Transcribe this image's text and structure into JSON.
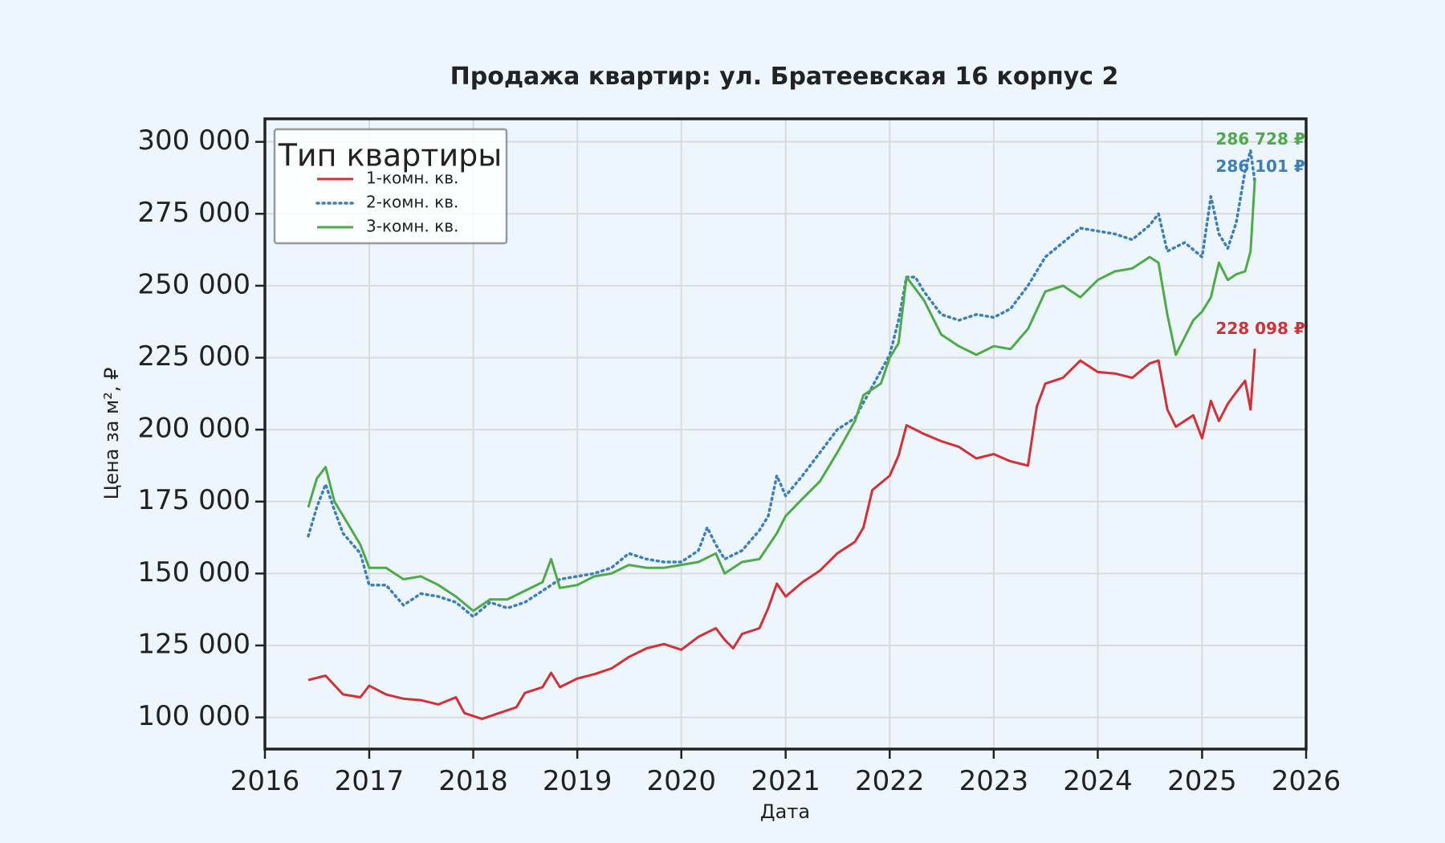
{
  "chart_data": {
    "type": "line",
    "title": "Продажа квартир: ул. Братеевская 16 корпус 2",
    "xlabel": "Дата",
    "ylabel": "Цена за м², ₽",
    "xlim": [
      "2016-01-01",
      "2026-01-01"
    ],
    "ylim": [
      89000,
      308000
    ],
    "x_ticks": [
      "2016",
      "2017",
      "2018",
      "2019",
      "2020",
      "2021",
      "2022",
      "2023",
      "2024",
      "2025",
      "2026"
    ],
    "y_ticks": [
      {
        "value": 100000,
        "label": "100 000"
      },
      {
        "value": 125000,
        "label": "125 000"
      },
      {
        "value": 150000,
        "label": "150 000"
      },
      {
        "value": 175000,
        "label": "175 000"
      },
      {
        "value": 200000,
        "label": "200 000"
      },
      {
        "value": 225000,
        "label": "225 000"
      },
      {
        "value": 250000,
        "label": "250 000"
      },
      {
        "value": 275000,
        "label": "275 000"
      },
      {
        "value": 300000,
        "label": "300 000"
      }
    ],
    "grid": true,
    "legend": {
      "title": "Тип квартиры",
      "placement": "top-left"
    },
    "series": [
      {
        "name": "1-комн. кв.",
        "color": "#d62f36",
        "style": "solid",
        "end_label": "228 098 ₽",
        "points": [
          [
            "2016-06-01",
            113000
          ],
          [
            "2016-08-01",
            114500
          ],
          [
            "2016-10-01",
            108000
          ],
          [
            "2016-12-01",
            107000
          ],
          [
            "2017-01-01",
            111000
          ],
          [
            "2017-03-01",
            108000
          ],
          [
            "2017-05-01",
            106500
          ],
          [
            "2017-07-01",
            106000
          ],
          [
            "2017-09-01",
            104500
          ],
          [
            "2017-11-01",
            107000
          ],
          [
            "2017-12-01",
            101500
          ],
          [
            "2018-02-01",
            99500
          ],
          [
            "2018-04-01",
            101500
          ],
          [
            "2018-06-01",
            103500
          ],
          [
            "2018-07-01",
            108500
          ],
          [
            "2018-09-01",
            110500
          ],
          [
            "2018-10-01",
            115500
          ],
          [
            "2018-11-01",
            110500
          ],
          [
            "2019-01-01",
            113500
          ],
          [
            "2019-03-01",
            115000
          ],
          [
            "2019-05-01",
            117000
          ],
          [
            "2019-07-01",
            121000
          ],
          [
            "2019-09-01",
            124000
          ],
          [
            "2019-11-01",
            125500
          ],
          [
            "2020-01-01",
            123500
          ],
          [
            "2020-03-01",
            128000
          ],
          [
            "2020-05-01",
            131000
          ],
          [
            "2020-06-01",
            127000
          ],
          [
            "2020-07-01",
            124000
          ],
          [
            "2020-08-01",
            129000
          ],
          [
            "2020-10-01",
            131000
          ],
          [
            "2020-11-01",
            138000
          ],
          [
            "2020-12-01",
            146500
          ],
          [
            "2021-01-01",
            142000
          ],
          [
            "2021-03-01",
            147000
          ],
          [
            "2021-05-01",
            151000
          ],
          [
            "2021-07-01",
            157000
          ],
          [
            "2021-09-01",
            161000
          ],
          [
            "2021-10-01",
            166000
          ],
          [
            "2021-11-01",
            179000
          ],
          [
            "2022-01-01",
            184000
          ],
          [
            "2022-02-01",
            191000
          ],
          [
            "2022-03-01",
            201500
          ],
          [
            "2022-05-01",
            198500
          ],
          [
            "2022-07-01",
            196000
          ],
          [
            "2022-09-01",
            194000
          ],
          [
            "2022-11-01",
            190000
          ],
          [
            "2023-01-01",
            191500
          ],
          [
            "2023-03-01",
            189000
          ],
          [
            "2023-05-01",
            187500
          ],
          [
            "2023-06-01",
            208000
          ],
          [
            "2023-07-01",
            216000
          ],
          [
            "2023-09-01",
            218000
          ],
          [
            "2023-11-01",
            224000
          ],
          [
            "2024-01-01",
            220000
          ],
          [
            "2024-03-01",
            219500
          ],
          [
            "2024-05-01",
            218000
          ],
          [
            "2024-07-01",
            223000
          ],
          [
            "2024-08-01",
            224000
          ],
          [
            "2024-09-01",
            207000
          ],
          [
            "2024-10-01",
            201000
          ],
          [
            "2024-12-01",
            205000
          ],
          [
            "2025-01-01",
            197000
          ],
          [
            "2025-02-01",
            210000
          ],
          [
            "2025-03-01",
            203000
          ],
          [
            "2025-04-01",
            209000
          ],
          [
            "2025-05-01",
            213000
          ],
          [
            "2025-06-01",
            217000
          ],
          [
            "2025-06-20",
            207000
          ],
          [
            "2025-07-05",
            228098
          ]
        ]
      },
      {
        "name": "2-комн. кв.",
        "color": "#3b7fbb",
        "style": "dotted",
        "end_label": "286 101 ₽",
        "points": [
          [
            "2016-06-01",
            163000
          ],
          [
            "2016-07-01",
            173000
          ],
          [
            "2016-08-01",
            181000
          ],
          [
            "2016-09-01",
            172000
          ],
          [
            "2016-10-01",
            164000
          ],
          [
            "2016-12-01",
            157000
          ],
          [
            "2017-01-01",
            146000
          ],
          [
            "2017-03-01",
            146000
          ],
          [
            "2017-05-01",
            139000
          ],
          [
            "2017-07-01",
            143000
          ],
          [
            "2017-09-01",
            142000
          ],
          [
            "2017-11-01",
            140000
          ],
          [
            "2018-01-01",
            135000
          ],
          [
            "2018-03-01",
            140000
          ],
          [
            "2018-05-01",
            138000
          ],
          [
            "2018-07-01",
            140000
          ],
          [
            "2018-09-01",
            144000
          ],
          [
            "2018-11-01",
            148000
          ],
          [
            "2019-01-01",
            149000
          ],
          [
            "2019-03-01",
            150000
          ],
          [
            "2019-05-01",
            152000
          ],
          [
            "2019-07-01",
            157000
          ],
          [
            "2019-09-01",
            155000
          ],
          [
            "2019-11-01",
            154000
          ],
          [
            "2020-01-01",
            154000
          ],
          [
            "2020-03-01",
            158000
          ],
          [
            "2020-04-01",
            166000
          ],
          [
            "2020-05-01",
            160000
          ],
          [
            "2020-06-01",
            155000
          ],
          [
            "2020-08-01",
            158000
          ],
          [
            "2020-10-01",
            165000
          ],
          [
            "2020-11-01",
            170000
          ],
          [
            "2020-12-01",
            184000
          ],
          [
            "2021-01-01",
            177000
          ],
          [
            "2021-03-01",
            184000
          ],
          [
            "2021-05-01",
            192000
          ],
          [
            "2021-07-01",
            200000
          ],
          [
            "2021-09-01",
            204000
          ],
          [
            "2021-11-01",
            215000
          ],
          [
            "2022-01-01",
            226000
          ],
          [
            "2022-02-01",
            238000
          ],
          [
            "2022-03-01",
            253000
          ],
          [
            "2022-04-01",
            253000
          ],
          [
            "2022-05-01",
            248000
          ],
          [
            "2022-07-01",
            240000
          ],
          [
            "2022-09-01",
            238000
          ],
          [
            "2022-11-01",
            240000
          ],
          [
            "2023-01-01",
            239000
          ],
          [
            "2023-03-01",
            242000
          ],
          [
            "2023-05-01",
            250000
          ],
          [
            "2023-07-01",
            260000
          ],
          [
            "2023-09-01",
            265000
          ],
          [
            "2023-11-01",
            270000
          ],
          [
            "2024-01-01",
            269000
          ],
          [
            "2024-03-01",
            268000
          ],
          [
            "2024-05-01",
            266000
          ],
          [
            "2024-07-01",
            271000
          ],
          [
            "2024-08-01",
            275000
          ],
          [
            "2024-09-01",
            262000
          ],
          [
            "2024-11-01",
            265000
          ],
          [
            "2025-01-01",
            260000
          ],
          [
            "2025-02-01",
            281000
          ],
          [
            "2025-03-01",
            268000
          ],
          [
            "2025-04-01",
            263000
          ],
          [
            "2025-05-01",
            272000
          ],
          [
            "2025-06-01",
            290000
          ],
          [
            "2025-06-20",
            297000
          ],
          [
            "2025-07-05",
            286101
          ]
        ]
      },
      {
        "name": "3-комн. кв.",
        "color": "#4dab48",
        "style": "solid",
        "end_label": "286 728 ₽",
        "points": [
          [
            "2016-06-01",
            173000
          ],
          [
            "2016-07-01",
            183000
          ],
          [
            "2016-08-01",
            187000
          ],
          [
            "2016-09-01",
            175000
          ],
          [
            "2016-11-01",
            165000
          ],
          [
            "2016-12-01",
            160000
          ],
          [
            "2017-01-01",
            152000
          ],
          [
            "2017-03-01",
            152000
          ],
          [
            "2017-05-01",
            148000
          ],
          [
            "2017-07-01",
            149000
          ],
          [
            "2017-09-01",
            146000
          ],
          [
            "2017-11-01",
            142000
          ],
          [
            "2018-01-01",
            137000
          ],
          [
            "2018-03-01",
            141000
          ],
          [
            "2018-05-01",
            141000
          ],
          [
            "2018-07-01",
            144000
          ],
          [
            "2018-09-01",
            147000
          ],
          [
            "2018-10-01",
            155000
          ],
          [
            "2018-11-01",
            145000
          ],
          [
            "2019-01-01",
            146000
          ],
          [
            "2019-03-01",
            149000
          ],
          [
            "2019-05-01",
            150000
          ],
          [
            "2019-07-01",
            153000
          ],
          [
            "2019-09-01",
            152000
          ],
          [
            "2019-11-01",
            152000
          ],
          [
            "2020-01-01",
            153000
          ],
          [
            "2020-03-01",
            154000
          ],
          [
            "2020-05-01",
            157000
          ],
          [
            "2020-06-01",
            150000
          ],
          [
            "2020-08-01",
            154000
          ],
          [
            "2020-10-01",
            155000
          ],
          [
            "2020-12-01",
            164000
          ],
          [
            "2021-01-01",
            170000
          ],
          [
            "2021-03-01",
            176000
          ],
          [
            "2021-05-01",
            182000
          ],
          [
            "2021-07-01",
            192000
          ],
          [
            "2021-09-01",
            203000
          ],
          [
            "2021-10-01",
            212000
          ],
          [
            "2021-12-01",
            216000
          ],
          [
            "2022-01-01",
            225000
          ],
          [
            "2022-02-01",
            230000
          ],
          [
            "2022-03-01",
            253000
          ],
          [
            "2022-05-01",
            245000
          ],
          [
            "2022-07-01",
            233000
          ],
          [
            "2022-09-01",
            229000
          ],
          [
            "2022-11-01",
            226000
          ],
          [
            "2023-01-01",
            229000
          ],
          [
            "2023-03-01",
            228000
          ],
          [
            "2023-05-01",
            235000
          ],
          [
            "2023-07-01",
            248000
          ],
          [
            "2023-09-01",
            250000
          ],
          [
            "2023-11-01",
            246000
          ],
          [
            "2024-01-01",
            252000
          ],
          [
            "2024-03-01",
            255000
          ],
          [
            "2024-05-01",
            256000
          ],
          [
            "2024-07-01",
            260000
          ],
          [
            "2024-08-01",
            258000
          ],
          [
            "2024-09-01",
            240000
          ],
          [
            "2024-10-01",
            226000
          ],
          [
            "2024-12-01",
            238000
          ],
          [
            "2025-01-01",
            241000
          ],
          [
            "2025-02-01",
            246000
          ],
          [
            "2025-03-01",
            258000
          ],
          [
            "2025-04-01",
            252000
          ],
          [
            "2025-05-01",
            254000
          ],
          [
            "2025-06-01",
            255000
          ],
          [
            "2025-06-20",
            262000
          ],
          [
            "2025-07-05",
            286728
          ]
        ]
      }
    ]
  }
}
